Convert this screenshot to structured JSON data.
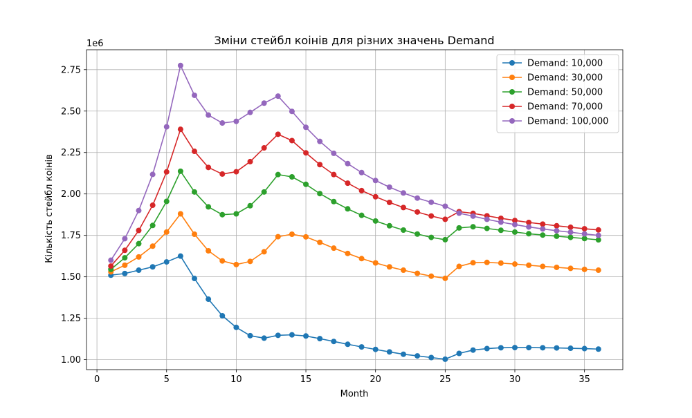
{
  "chart_data": {
    "type": "line",
    "title": "Зміни стейбл коінів для різних значень Demand",
    "xlabel": "Month",
    "ylabel": "Кількість стейбл коінів",
    "y_offset_text": "1e6",
    "xlim": [
      -0.75,
      37.75
    ],
    "ylim": [
      940000,
      2870000
    ],
    "x_ticks": [
      0,
      5,
      10,
      15,
      20,
      25,
      30,
      35
    ],
    "y_ticks": [
      1000000,
      1250000,
      1500000,
      1750000,
      2000000,
      2250000,
      2500000,
      2750000
    ],
    "y_tick_labels": [
      "1.00",
      "1.25",
      "1.50",
      "1.75",
      "2.00",
      "2.25",
      "2.50",
      "2.75"
    ],
    "grid": true,
    "legend_position": "top-right",
    "x": [
      1,
      2,
      3,
      4,
      5,
      6,
      7,
      8,
      9,
      10,
      11,
      12,
      13,
      14,
      15,
      16,
      17,
      18,
      19,
      20,
      21,
      22,
      23,
      24,
      25,
      26,
      27,
      28,
      29,
      30,
      31,
      32,
      33,
      34,
      35,
      36
    ],
    "series": [
      {
        "name": "Demand: 10,000",
        "color": "#1f77b4",
        "values": [
          1510000,
          1520000,
          1540000,
          1560000,
          1590000,
          1625000,
          1490000,
          1365000,
          1265000,
          1195000,
          1145000,
          1130000,
          1147000,
          1150000,
          1143000,
          1127000,
          1110000,
          1093000,
          1077000,
          1062000,
          1047000,
          1033000,
          1023000,
          1013000,
          1003000,
          1038000,
          1058000,
          1067000,
          1072000,
          1073000,
          1073000,
          1072000,
          1071000,
          1069000,
          1067000,
          1064000
        ]
      },
      {
        "name": "Demand: 30,000",
        "color": "#ff7f0e",
        "values": [
          1530000,
          1570000,
          1620000,
          1685000,
          1770000,
          1880000,
          1757000,
          1657000,
          1596000,
          1574000,
          1593000,
          1651000,
          1742000,
          1757000,
          1741000,
          1708000,
          1673000,
          1641000,
          1610000,
          1584000,
          1560000,
          1540000,
          1521000,
          1504000,
          1491000,
          1563000,
          1585000,
          1587000,
          1583000,
          1577000,
          1570000,
          1563000,
          1557000,
          1551000,
          1545000,
          1540000
        ]
      },
      {
        "name": "Demand: 50,000",
        "color": "#2ca02c",
        "values": [
          1545000,
          1615000,
          1700000,
          1810000,
          1955000,
          2137000,
          2012000,
          1922000,
          1875000,
          1880000,
          1929000,
          2012000,
          2117000,
          2103000,
          2058000,
          2002000,
          1954000,
          1910000,
          1871000,
          1837000,
          1808000,
          1782000,
          1758000,
          1738000,
          1724000,
          1795000,
          1802000,
          1792000,
          1781000,
          1770000,
          1760000,
          1752000,
          1745000,
          1738000,
          1731000,
          1723000
        ]
      },
      {
        "name": "Demand: 70,000",
        "color": "#d62728",
        "values": [
          1565000,
          1660000,
          1780000,
          1932000,
          2133000,
          2390000,
          2257000,
          2160000,
          2120000,
          2134000,
          2195000,
          2278000,
          2360000,
          2322000,
          2248000,
          2177000,
          2117000,
          2065000,
          2020000,
          1983000,
          1949000,
          1918000,
          1891000,
          1867000,
          1847000,
          1893000,
          1883000,
          1868000,
          1853000,
          1840000,
          1828000,
          1818000,
          1808000,
          1799000,
          1790000,
          1783000
        ]
      },
      {
        "name": "Demand: 100,000",
        "color": "#9467bd",
        "values": [
          1600000,
          1730000,
          1900000,
          2118000,
          2405000,
          2775000,
          2595000,
          2476000,
          2428000,
          2438000,
          2492000,
          2548000,
          2590000,
          2498000,
          2402000,
          2317000,
          2245000,
          2183000,
          2129000,
          2081000,
          2041000,
          2006000,
          1975000,
          1950000,
          1926000,
          1884000,
          1866000,
          1847000,
          1830000,
          1815000,
          1801000,
          1789000,
          1778000,
          1769000,
          1759000,
          1750000
        ]
      }
    ]
  }
}
